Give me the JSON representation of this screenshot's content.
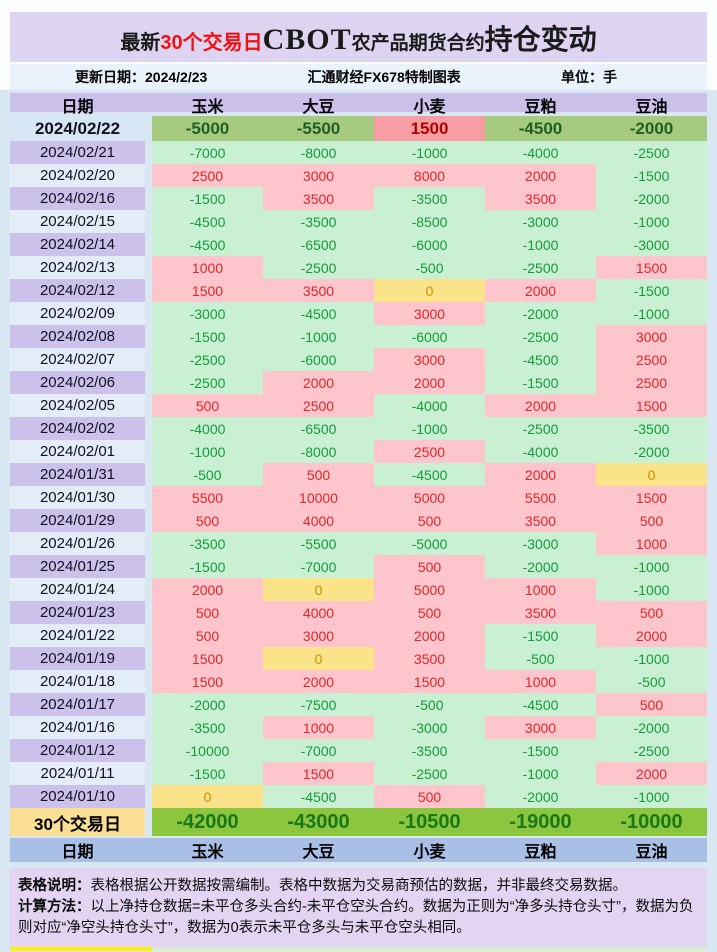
{
  "title": {
    "prefix": "最新",
    "highlight": "30个交易日",
    "brand": "CBOT",
    "middle": "农产品期货合约",
    "suffix": "持仓变动"
  },
  "meta": {
    "update": "更新日期：2024/2/23",
    "source": "汇通财经FX678特制图表",
    "unit": "单位：手"
  },
  "chart_data": {
    "type": "table",
    "title": "最新30个交易日CBOT农产品期货合约持仓变动",
    "columns": [
      "日期",
      "玉米",
      "大豆",
      "小麦",
      "豆粕",
      "豆油"
    ],
    "rows": [
      {
        "date": "2024/02/22",
        "values": [
          -5000,
          -5500,
          1500,
          -4500,
          -2000
        ]
      },
      {
        "date": "2024/02/21",
        "values": [
          -7000,
          -8000,
          -1000,
          -4000,
          -2500
        ]
      },
      {
        "date": "2024/02/20",
        "values": [
          2500,
          3000,
          8000,
          2000,
          -1500
        ]
      },
      {
        "date": "2024/02/16",
        "values": [
          -1500,
          3500,
          -3500,
          3500,
          -2000
        ]
      },
      {
        "date": "2024/02/15",
        "values": [
          -4500,
          -3500,
          -8500,
          -3000,
          -1000
        ]
      },
      {
        "date": "2024/02/14",
        "values": [
          -4500,
          -6500,
          -6000,
          -1000,
          -3000
        ]
      },
      {
        "date": "2024/02/13",
        "values": [
          1000,
          -2500,
          -500,
          -2500,
          1500
        ]
      },
      {
        "date": "2024/02/12",
        "values": [
          1500,
          3500,
          0,
          2000,
          -1500
        ]
      },
      {
        "date": "2024/02/09",
        "values": [
          -3000,
          -4500,
          3000,
          -2000,
          -1000
        ]
      },
      {
        "date": "2024/02/08",
        "values": [
          -1500,
          -1000,
          -6000,
          -2500,
          3000
        ]
      },
      {
        "date": "2024/02/07",
        "values": [
          -2500,
          -6000,
          3000,
          -4500,
          2500
        ]
      },
      {
        "date": "2024/02/06",
        "values": [
          -2500,
          2000,
          2000,
          -1500,
          2500
        ]
      },
      {
        "date": "2024/02/05",
        "values": [
          500,
          2500,
          -4000,
          2000,
          1500
        ]
      },
      {
        "date": "2024/02/02",
        "values": [
          -4000,
          -6500,
          -1000,
          -2500,
          -3500
        ]
      },
      {
        "date": "2024/02/01",
        "values": [
          -1000,
          -8000,
          2500,
          -4000,
          -2000
        ]
      },
      {
        "date": "2024/01/31",
        "values": [
          -500,
          500,
          -4500,
          2000,
          0
        ]
      },
      {
        "date": "2024/01/30",
        "values": [
          5500,
          10000,
          5000,
          5500,
          1500
        ]
      },
      {
        "date": "2024/01/29",
        "values": [
          500,
          4000,
          500,
          3500,
          500
        ]
      },
      {
        "date": "2024/01/26",
        "values": [
          -3500,
          -5500,
          -5000,
          -3000,
          1000
        ]
      },
      {
        "date": "2024/01/25",
        "values": [
          -1500,
          -7000,
          500,
          -2000,
          -1000
        ]
      },
      {
        "date": "2024/01/24",
        "values": [
          2000,
          0,
          5000,
          1000,
          -1000
        ]
      },
      {
        "date": "2024/01/23",
        "values": [
          500,
          4000,
          500,
          3500,
          500
        ]
      },
      {
        "date": "2024/01/22",
        "values": [
          500,
          3000,
          2000,
          -1500,
          2000
        ]
      },
      {
        "date": "2024/01/19",
        "values": [
          1500,
          0,
          3500,
          -500,
          -1000
        ]
      },
      {
        "date": "2024/01/18",
        "values": [
          1500,
          2000,
          1500,
          1000,
          -500
        ]
      },
      {
        "date": "2024/01/17",
        "values": [
          -2000,
          -7500,
          -500,
          -4500,
          500
        ]
      },
      {
        "date": "2024/01/16",
        "values": [
          -3500,
          1000,
          -3000,
          3000,
          -2000
        ]
      },
      {
        "date": "2024/01/12",
        "values": [
          -10000,
          -7000,
          -3500,
          -1500,
          -2500
        ]
      },
      {
        "date": "2024/01/11",
        "values": [
          -1500,
          1500,
          -2500,
          -1000,
          2000
        ]
      },
      {
        "date": "2024/01/10",
        "values": [
          0,
          -4500,
          500,
          -2000,
          -1000
        ]
      }
    ],
    "summary": {
      "label": "30个交易日",
      "values": [
        -42000,
        -43000,
        -10500,
        -19000,
        -10000
      ]
    }
  },
  "notes": {
    "line1_label": "表格说明：",
    "line1_text": "表格根据公开数据按需编制。表格中数据为交易商预估的数据，并非最终交易数据。",
    "line2_label": "计算方法：",
    "line2_text": "以上净持仓数据=未平仓多头合约-未平仓空头合约。数据为正则为“净多头持仓头寸”，数据为负则对应“净空头持仓头寸”，数据为0表示未平仓多头与未平仓空头相同。"
  },
  "colors": {
    "title_bg": "#DED3F0",
    "title_red": "#EE1111",
    "header_bg": "#CBC0EA",
    "footer_bg": "#A9BFE5",
    "date_lav": "#CCC1EB",
    "date_pale": "#E2EDF8",
    "pos_bg": "#FFC5CD",
    "pos_text": "#DC2828",
    "neg_bg": "#C9F0D2",
    "neg_text": "#149C3C",
    "zero_bg": "#FBE389",
    "zero_text": "#C89000",
    "first_pos_bg": "#F79DA4",
    "first_pos_text": "#B00000",
    "first_neg_bg": "#A7CB7E",
    "first_neg_text": "#215E21",
    "sum_label_bg": "#FBDF94",
    "sum_bg": "#8CC63E",
    "sum_text": "#187818",
    "notes_bg": "#E3D4F1"
  }
}
